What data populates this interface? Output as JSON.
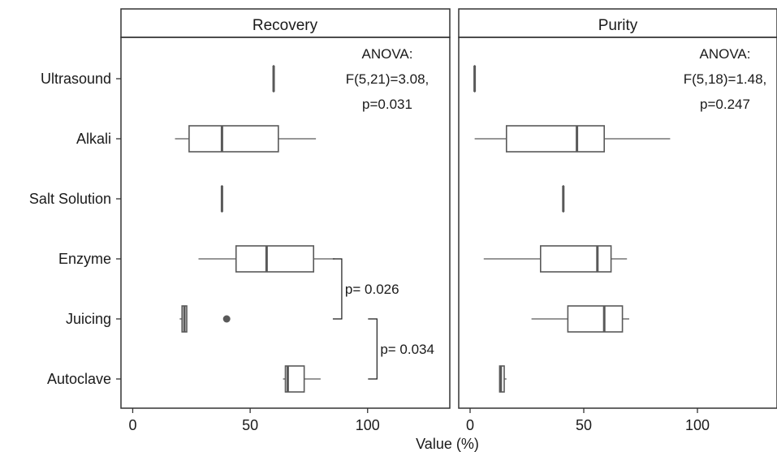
{
  "chart_data": {
    "type": "boxplot",
    "xlabel": "Value (%)",
    "ylabel": "",
    "xlim": [
      -5,
      135
    ],
    "x_ticks": [
      0,
      50,
      100
    ],
    "categories": [
      "Ultrasound",
      "Alkali",
      "Salt Solution",
      "Enzyme",
      "Juicing",
      "Autoclave"
    ],
    "grid": false,
    "panels": [
      {
        "name": "Recovery",
        "anova": [
          "ANOVA:",
          "F(5,21)=3.08,",
          "p=0.031"
        ],
        "boxes": [
          {
            "category": "Ultrasound",
            "whisker_low": 60,
            "q1": 60,
            "median": 60,
            "q3": 60,
            "whisker_high": 60,
            "outliers": []
          },
          {
            "category": "Alkali",
            "whisker_low": 18,
            "q1": 24,
            "median": 38,
            "q3": 62,
            "whisker_high": 78,
            "outliers": []
          },
          {
            "category": "Salt Solution",
            "whisker_low": 38,
            "q1": 38,
            "median": 38,
            "q3": 38,
            "whisker_high": 38,
            "outliers": []
          },
          {
            "category": "Enzyme",
            "whisker_low": 28,
            "q1": 44,
            "median": 57,
            "q3": 77,
            "whisker_high": 86,
            "outliers": []
          },
          {
            "category": "Juicing",
            "whisker_low": 20,
            "q1": 21,
            "median": 22,
            "q3": 23,
            "whisker_high": 23,
            "outliers": [
              40
            ]
          },
          {
            "category": "Autoclave",
            "whisker_low": 64,
            "q1": 65,
            "median": 66,
            "q3": 73,
            "whisker_high": 80,
            "outliers": []
          }
        ],
        "comparisons": [
          {
            "from": "Enzyme",
            "to": "Juicing",
            "label": "p= 0.026",
            "x": 89
          },
          {
            "from": "Juicing",
            "to": "Autoclave",
            "label": "p= 0.034",
            "x": 104
          }
        ]
      },
      {
        "name": "Purity",
        "anova": [
          "ANOVA:",
          "F(5,18)=1.48,",
          "p=0.247"
        ],
        "boxes": [
          {
            "category": "Ultrasound",
            "whisker_low": 2,
            "q1": 2,
            "median": 2,
            "q3": 2,
            "whisker_high": 2,
            "outliers": []
          },
          {
            "category": "Alkali",
            "whisker_low": 2,
            "q1": 16,
            "median": 47,
            "q3": 59,
            "whisker_high": 88,
            "outliers": []
          },
          {
            "category": "Salt Solution",
            "whisker_low": 41,
            "q1": 41,
            "median": 41,
            "q3": 41,
            "whisker_high": 41,
            "outliers": []
          },
          {
            "category": "Enzyme",
            "whisker_low": 6,
            "q1": 31,
            "median": 56,
            "q3": 62,
            "whisker_high": 69,
            "outliers": []
          },
          {
            "category": "Juicing",
            "whisker_low": 27,
            "q1": 43,
            "median": 59,
            "q3": 67,
            "whisker_high": 70,
            "outliers": []
          },
          {
            "category": "Autoclave",
            "whisker_low": 13,
            "q1": 13,
            "median": 13.5,
            "q3": 15,
            "whisker_high": 16,
            "outliers": []
          }
        ],
        "comparisons": []
      }
    ]
  }
}
